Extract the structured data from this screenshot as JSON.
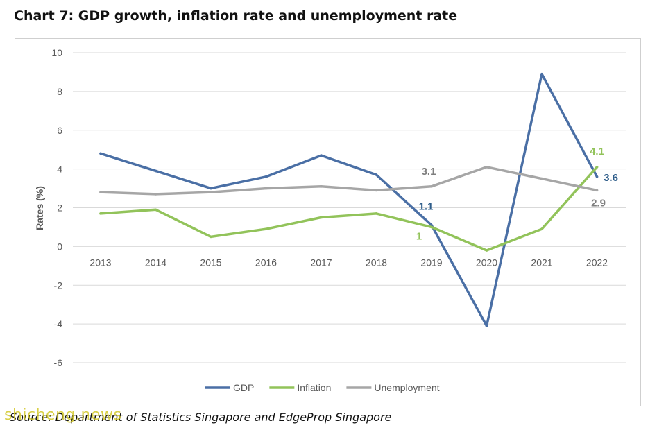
{
  "title": "Chart 7: GDP growth, inflation rate and unemployment rate",
  "source": "Source: Department of Statistics Singapore and EdgeProp Singapore",
  "watermark": "shicheng.news",
  "chart_data": {
    "type": "line",
    "title": "Chart 7: GDP growth, inflation rate and unemployment rate",
    "ylabel": "Rates (%)",
    "xlabel": "",
    "ylim": [
      -6,
      10
    ],
    "yticks": [
      "10",
      "8",
      "6",
      "4",
      "2",
      "0",
      "-2",
      "-4",
      "-6"
    ],
    "categories": [
      "2013",
      "2014",
      "2015",
      "2016",
      "2017",
      "2018",
      "2019",
      "2020",
      "2021",
      "2022"
    ],
    "grid": true,
    "legend": "bottom",
    "series": [
      {
        "name": "GDP",
        "color": "#4a6fa5",
        "values": [
          4.8,
          3.9,
          3.0,
          3.6,
          4.7,
          3.7,
          1.1,
          -4.1,
          8.9,
          3.6
        ]
      },
      {
        "name": "Inflation",
        "color": "#92c35a",
        "values": [
          1.7,
          1.9,
          0.5,
          0.9,
          1.5,
          1.7,
          1.0,
          -0.2,
          0.9,
          4.1
        ]
      },
      {
        "name": "Unemployment",
        "color": "#a6a6a6",
        "values": [
          2.8,
          2.7,
          2.8,
          3.0,
          3.1,
          2.9,
          3.1,
          4.1,
          3.5,
          2.9
        ]
      }
    ],
    "annotations": [
      {
        "series": "GDP",
        "category": "2019",
        "text": "1.1",
        "color": "#2e5d8a"
      },
      {
        "series": "Inflation",
        "category": "2019",
        "text": "1",
        "color": "#92c35a"
      },
      {
        "series": "Unemployment",
        "category": "2019",
        "text": "3.1",
        "color": "#7f7f7f"
      },
      {
        "series": "Inflation",
        "category": "2022",
        "text": "4.1",
        "color": "#92c35a"
      },
      {
        "series": "GDP",
        "category": "2022",
        "text": "3.6",
        "color": "#2e5d8a"
      },
      {
        "series": "Unemployment",
        "category": "2022",
        "text": "2.9",
        "color": "#7f7f7f"
      }
    ]
  }
}
